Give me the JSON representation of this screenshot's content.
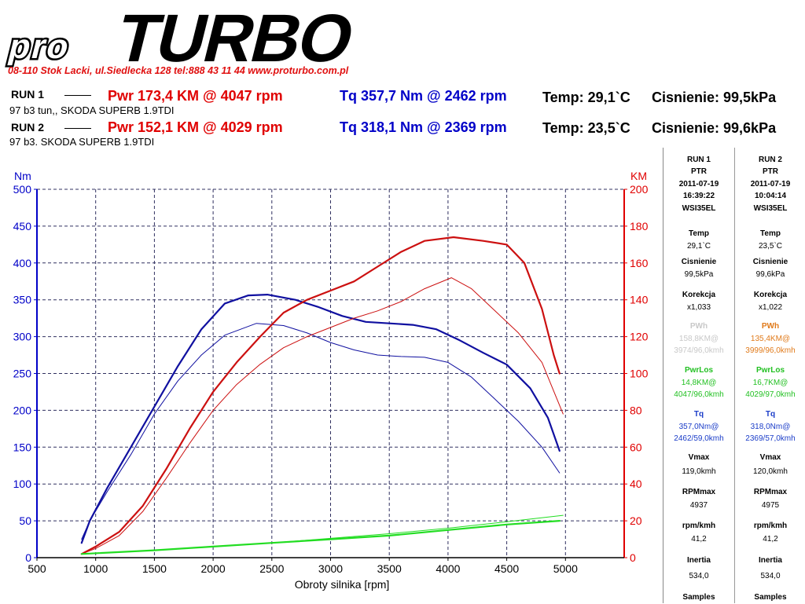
{
  "header": {
    "logo_pro": "pro",
    "logo_turbo": "TURBO",
    "contact": "08-110 Stok Lacki,   ul.Siedlecka 128   tel:888 43 11 44   www.proturbo.com.pl"
  },
  "runs": [
    {
      "label": "RUN 1",
      "subtitle": "97 b3 tun,, SKODA SUPERB 1.9TDI",
      "pwr": "Pwr  173,4 KM @ 4047 rpm",
      "tq": "Tq 357,7 Nm @ 2462 rpm",
      "temp": "Temp: 29,1`C",
      "press": "Cisnienie: 99,5kPa"
    },
    {
      "label": "RUN 2",
      "subtitle": "97 b3. SKODA SUPERB 1.9TDI",
      "pwr": "Pwr  152,1 KM @ 4029 rpm",
      "tq": "Tq 318,1 Nm @ 2369 rpm",
      "temp": "Temp: 23,5`C",
      "press": "Cisnienie: 99,6kPa"
    }
  ],
  "colors": {
    "power": "#cc1010",
    "torque": "#1010a0",
    "loss": "#22dd22",
    "left_axis": "#0000c8",
    "right_axis": "#e00000"
  },
  "sidebar": {
    "columns": [
      {
        "name": "RUN 1",
        "mode": "PTR",
        "date": "2011-07-19",
        "time": "16:39:22",
        "code": "WSI35EL",
        "temp_label": "Temp",
        "temp": "29,1`C",
        "press_label": "Cisnienie",
        "press": "99,5kPa",
        "corr_label": "Korekcja",
        "corr": "x1,033",
        "pwh_label": "PWh",
        "pwh": "158,8KM@",
        "pwh2": "3974/96,0kmh",
        "pwh_color": "#c8c8c8",
        "los_label": "PwrLos",
        "los": "14,8KM@",
        "los2": "4047/96,0kmh",
        "tq_label": "Tq",
        "tq": "357,0Nm@",
        "tq2": "2462/59,0kmh",
        "vmax_label": "Vmax",
        "vmax": "119,0kmh",
        "rpmmax_label": "RPMmax",
        "rpmmax": "4937",
        "rpmkmh_label": "rpm/kmh",
        "rpmkmh": "41,2",
        "inertia_label": "Inertia",
        "inertia": "534,0",
        "samples_label": "Samples"
      },
      {
        "name": "RUN 2",
        "mode": "PTR",
        "date": "2011-07-19",
        "time": "10:04:14",
        "code": "WSI35EL",
        "temp_label": "Temp",
        "temp": "23,5`C",
        "press_label": "Cisnienie",
        "press": "99,6kPa",
        "corr_label": "Korekcja",
        "corr": "x1,022",
        "pwh_label": "PWh",
        "pwh": "135,4KM@",
        "pwh2": "3999/96,0kmh",
        "pwh_color": "#e07a1a",
        "los_label": "PwrLos",
        "los": "16,7KM@",
        "los2": "4029/97,0kmh",
        "tq_label": "Tq",
        "tq": "318,0Nm@",
        "tq2": "2369/57,0kmh",
        "vmax_label": "Vmax",
        "vmax": "120,0kmh",
        "rpmmax_label": "RPMmax",
        "rpmmax": "4975",
        "rpmkmh_label": "rpm/kmh",
        "rpmkmh": "41,2",
        "inertia_label": "Inertia",
        "inertia": "534,0",
        "samples_label": "Samples"
      }
    ]
  },
  "chart_data": {
    "type": "line",
    "xlabel": "Obroty silnika [rpm]",
    "ylabel_left": "Nm",
    "ylabel_right": "KM",
    "xlim": [
      500,
      5500
    ],
    "ylim_left": [
      0,
      500
    ],
    "ylim_right": [
      0,
      200
    ],
    "x_ticks": [
      500,
      1000,
      1500,
      2000,
      2500,
      3000,
      3500,
      4000,
      4500,
      5000
    ],
    "y_ticks_left": [
      0,
      50,
      100,
      150,
      200,
      250,
      300,
      350,
      400,
      450,
      500
    ],
    "y_ticks_right": [
      0,
      20,
      40,
      60,
      80,
      100,
      120,
      140,
      160,
      180,
      200
    ],
    "grid": true,
    "series": [
      {
        "name": "Tq RUN 1",
        "axis": "left",
        "kind": "torque",
        "width": 2.2,
        "x": [
          880,
          950,
          1100,
          1300,
          1500,
          1700,
          1900,
          2100,
          2300,
          2462,
          2700,
          2900,
          3100,
          3300,
          3500,
          3700,
          3900,
          4100,
          4300,
          4500,
          4700,
          4850,
          4950
        ],
        "y": [
          20,
          50,
          95,
          150,
          205,
          260,
          310,
          345,
          356,
          357,
          350,
          340,
          328,
          320,
          318,
          316,
          310,
          295,
          278,
          262,
          230,
          190,
          145
        ]
      },
      {
        "name": "Tq RUN 2",
        "axis": "left",
        "kind": "torque",
        "width": 1,
        "x": [
          880,
          950,
          1100,
          1300,
          1500,
          1700,
          1900,
          2100,
          2369,
          2600,
          2800,
          3000,
          3200,
          3400,
          3600,
          3800,
          4000,
          4200,
          4400,
          4600,
          4800,
          4950
        ],
        "y": [
          25,
          50,
          90,
          140,
          195,
          240,
          275,
          302,
          318,
          315,
          305,
          292,
          282,
          275,
          273,
          272,
          265,
          245,
          215,
          185,
          150,
          115
        ]
      },
      {
        "name": "Pwr RUN 1",
        "axis": "right",
        "kind": "power",
        "width": 2.2,
        "x": [
          880,
          1000,
          1200,
          1400,
          1600,
          1800,
          2000,
          2200,
          2400,
          2600,
          2800,
          3000,
          3200,
          3400,
          3600,
          3800,
          4047,
          4300,
          4500,
          4650,
          4800,
          4900,
          4950
        ],
        "y": [
          2,
          6,
          14,
          28,
          48,
          70,
          90,
          106,
          120,
          133,
          140,
          145,
          150,
          158,
          166,
          172,
          174,
          172,
          170,
          160,
          135,
          110,
          100
        ]
      },
      {
        "name": "Pwr RUN 2",
        "axis": "right",
        "kind": "power",
        "width": 1,
        "x": [
          880,
          1000,
          1200,
          1400,
          1600,
          1800,
          2000,
          2200,
          2400,
          2600,
          2800,
          3000,
          3200,
          3400,
          3600,
          3800,
          4029,
          4200,
          4400,
          4600,
          4800,
          4980
        ],
        "y": [
          2,
          5,
          12,
          25,
          43,
          62,
          80,
          94,
          105,
          114,
          120,
          125,
          130,
          134,
          139,
          146,
          152,
          146,
          134,
          122,
          106,
          78
        ]
      },
      {
        "name": "PwrLos RUN 1",
        "axis": "right",
        "kind": "loss",
        "width": 2.2,
        "x": [
          880,
          1500,
          2000,
          2500,
          3000,
          3500,
          4000,
          4500,
          4950
        ],
        "y": [
          2,
          4,
          6,
          8,
          10,
          12,
          15,
          18,
          20
        ]
      },
      {
        "name": "PwrLos RUN 2",
        "axis": "right",
        "kind": "loss",
        "width": 1,
        "x": [
          880,
          1500,
          2000,
          2500,
          3000,
          3500,
          4000,
          4500,
          4980
        ],
        "y": [
          2,
          4,
          6,
          8,
          10.5,
          13,
          16,
          19.5,
          23
        ]
      }
    ]
  }
}
